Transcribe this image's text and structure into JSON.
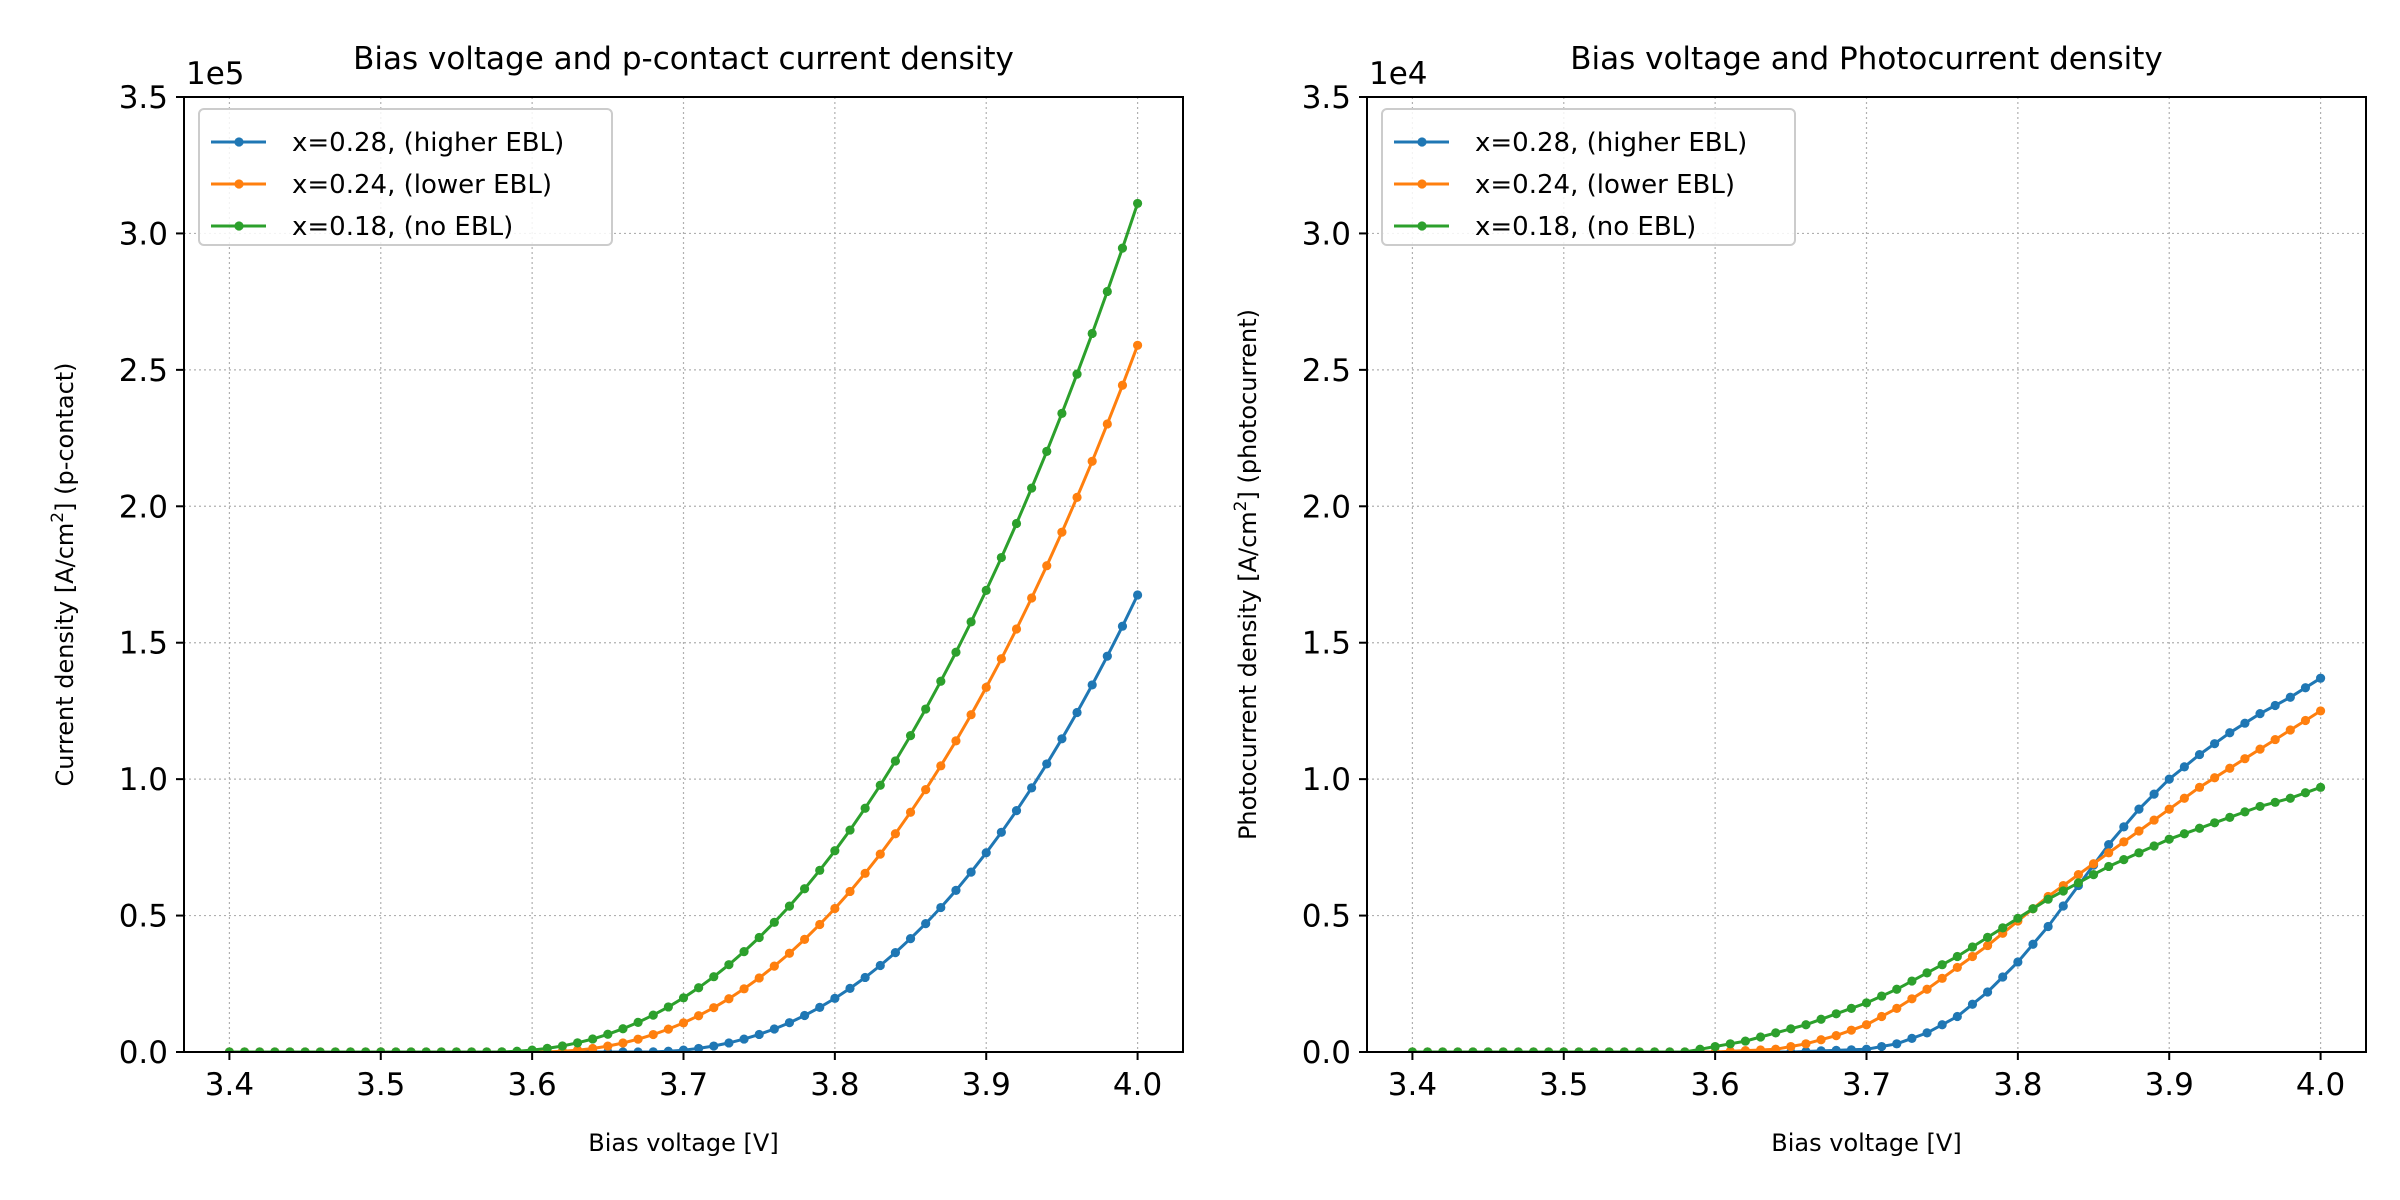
{
  "chart_data": [
    {
      "type": "line",
      "title": "Bias voltage and p-contact current density",
      "xlabel": "Bias voltage [V]",
      "ylabel_pre": "Current density [A/cm",
      "ylabel_sup": "2",
      "ylabel_post": "] (p-contact)",
      "offset_text": "1e5",
      "scale": 100000,
      "xlim": [
        3.37,
        4.03
      ],
      "ylim": [
        0,
        350000
      ],
      "xticks": [
        3.4,
        3.5,
        3.6,
        3.7,
        3.8,
        3.9,
        4.0
      ],
      "xtick_labels": [
        "3.4",
        "3.5",
        "3.6",
        "3.7",
        "3.8",
        "3.9",
        "4.0"
      ],
      "yticks": [
        0,
        50000,
        100000,
        150000,
        200000,
        250000,
        300000,
        350000
      ],
      "ytick_labels": [
        "0.0",
        "0.5",
        "1.0",
        "1.5",
        "2.0",
        "2.5",
        "3.0",
        "3.5"
      ],
      "grid": true,
      "legend_position": "upper-left",
      "series": [
        {
          "name": "x=0.28, (higher EBL)",
          "color": "#1f77b4",
          "v0": 3.67,
          "vend": 4.0,
          "yend": 167500,
          "exp": 2.3
        },
        {
          "name": "x=0.24, (lower EBL)",
          "color": "#ff7f0e",
          "v0": 3.6,
          "vend": 4.0,
          "yend": 259000,
          "exp": 2.3
        },
        {
          "name": "x=0.18, (no EBL)",
          "color": "#2ca02c",
          "v0": 3.57,
          "vend": 4.0,
          "yend": 311000,
          "exp": 2.3
        }
      ]
    },
    {
      "type": "line",
      "title": "Bias voltage and Photocurrent density",
      "xlabel": "Bias voltage [V]",
      "ylabel_pre": "Photocurrent density [A/cm",
      "ylabel_sup": "2",
      "ylabel_post": "] (photocurrent)",
      "offset_text": "1e4",
      "scale": 10000,
      "xlim": [
        3.37,
        4.03
      ],
      "ylim": [
        0,
        35000
      ],
      "xticks": [
        3.4,
        3.5,
        3.6,
        3.7,
        3.8,
        3.9,
        4.0
      ],
      "xtick_labels": [
        "3.4",
        "3.5",
        "3.6",
        "3.7",
        "3.8",
        "3.9",
        "4.0"
      ],
      "yticks": [
        0,
        5000,
        10000,
        15000,
        20000,
        25000,
        30000,
        35000
      ],
      "ytick_labels": [
        "0.0",
        "0.5",
        "1.0",
        "1.5",
        "2.0",
        "2.5",
        "3.0",
        "3.5"
      ],
      "grid": true,
      "legend_position": "upper-left",
      "series": [
        {
          "name": "x=0.28, (higher EBL)",
          "color": "#1f77b4",
          "x": [
            3.4,
            3.65,
            3.7,
            3.72,
            3.74,
            3.76,
            3.78,
            3.8,
            3.82,
            3.84,
            3.86,
            3.88,
            3.9,
            3.92,
            3.94,
            3.96,
            3.98,
            4.0
          ],
          "y": [
            0,
            0,
            100,
            300,
            700,
            1300,
            2200,
            3300,
            4600,
            6100,
            7600,
            8900,
            10000,
            10900,
            11700,
            12400,
            13000,
            13700
          ]
        },
        {
          "name": "x=0.24, (lower EBL)",
          "color": "#ff7f0e",
          "x": [
            3.4,
            3.6,
            3.64,
            3.66,
            3.68,
            3.7,
            3.72,
            3.74,
            3.76,
            3.78,
            3.8,
            3.82,
            3.84,
            3.86,
            3.88,
            3.9,
            3.92,
            3.94,
            3.96,
            3.98,
            4.0
          ],
          "y": [
            0,
            0,
            100,
            300,
            600,
            1000,
            1600,
            2300,
            3100,
            3900,
            4800,
            5700,
            6500,
            7300,
            8100,
            8900,
            9700,
            10400,
            11100,
            11800,
            12500
          ]
        },
        {
          "name": "x=0.18, (no EBL)",
          "color": "#2ca02c",
          "x": [
            3.4,
            3.58,
            3.6,
            3.62,
            3.64,
            3.66,
            3.68,
            3.7,
            3.72,
            3.74,
            3.76,
            3.78,
            3.8,
            3.82,
            3.84,
            3.86,
            3.88,
            3.9,
            3.92,
            3.94,
            3.96,
            3.98,
            4.0
          ],
          "y": [
            0,
            0,
            200,
            400,
            700,
            1000,
            1400,
            1800,
            2300,
            2900,
            3500,
            4200,
            4900,
            5600,
            6200,
            6800,
            7300,
            7800,
            8200,
            8600,
            9000,
            9300,
            9700
          ]
        }
      ]
    }
  ]
}
